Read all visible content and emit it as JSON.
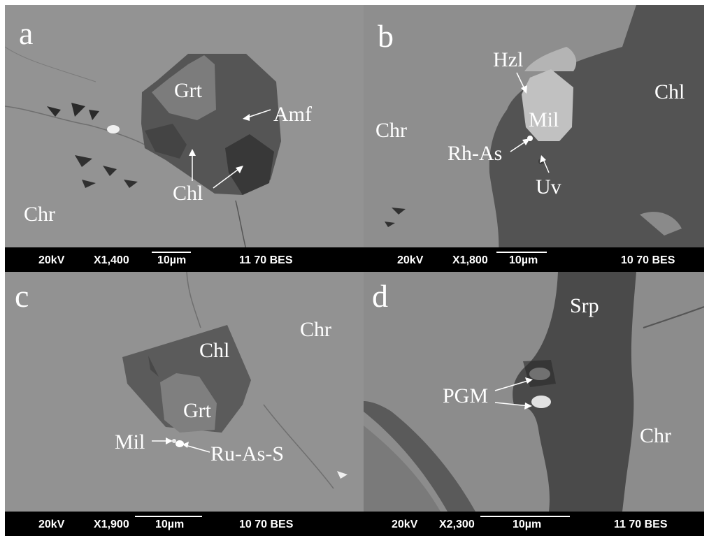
{
  "panels": {
    "a": {
      "letter": "a",
      "labels": {
        "grt": "Grt",
        "amf": "Amf",
        "chl": "Chl",
        "chr": "Chr"
      },
      "info": {
        "kv": "20kV",
        "mag": "X1,400",
        "scale": "10µm",
        "code": "11 70 BES"
      }
    },
    "b": {
      "letter": "b",
      "labels": {
        "hzl": "Hzl",
        "chl": "Chl",
        "chr": "Chr",
        "mil": "Mil",
        "rh": "Rh-As",
        "uv": "Uv"
      },
      "info": {
        "kv": "20kV",
        "mag": "X1,800",
        "scale": "10µm",
        "code": "10 70 BES"
      }
    },
    "c": {
      "letter": "c",
      "labels": {
        "chr": "Chr",
        "chl": "Chl",
        "grt": "Grt",
        "mil": "Mil",
        "ru": "Ru-As-S"
      },
      "info": {
        "kv": "20kV",
        "mag": "X1,900",
        "scale": "10µm",
        "code": "10 70 BES"
      }
    },
    "d": {
      "letter": "d",
      "labels": {
        "srp": "Srp",
        "pgm": "PGM",
        "chr": "Chr"
      },
      "info": {
        "kv": "20kV",
        "mag": "X2,300",
        "scale": "10µm",
        "code": "11 70 BES"
      }
    }
  }
}
